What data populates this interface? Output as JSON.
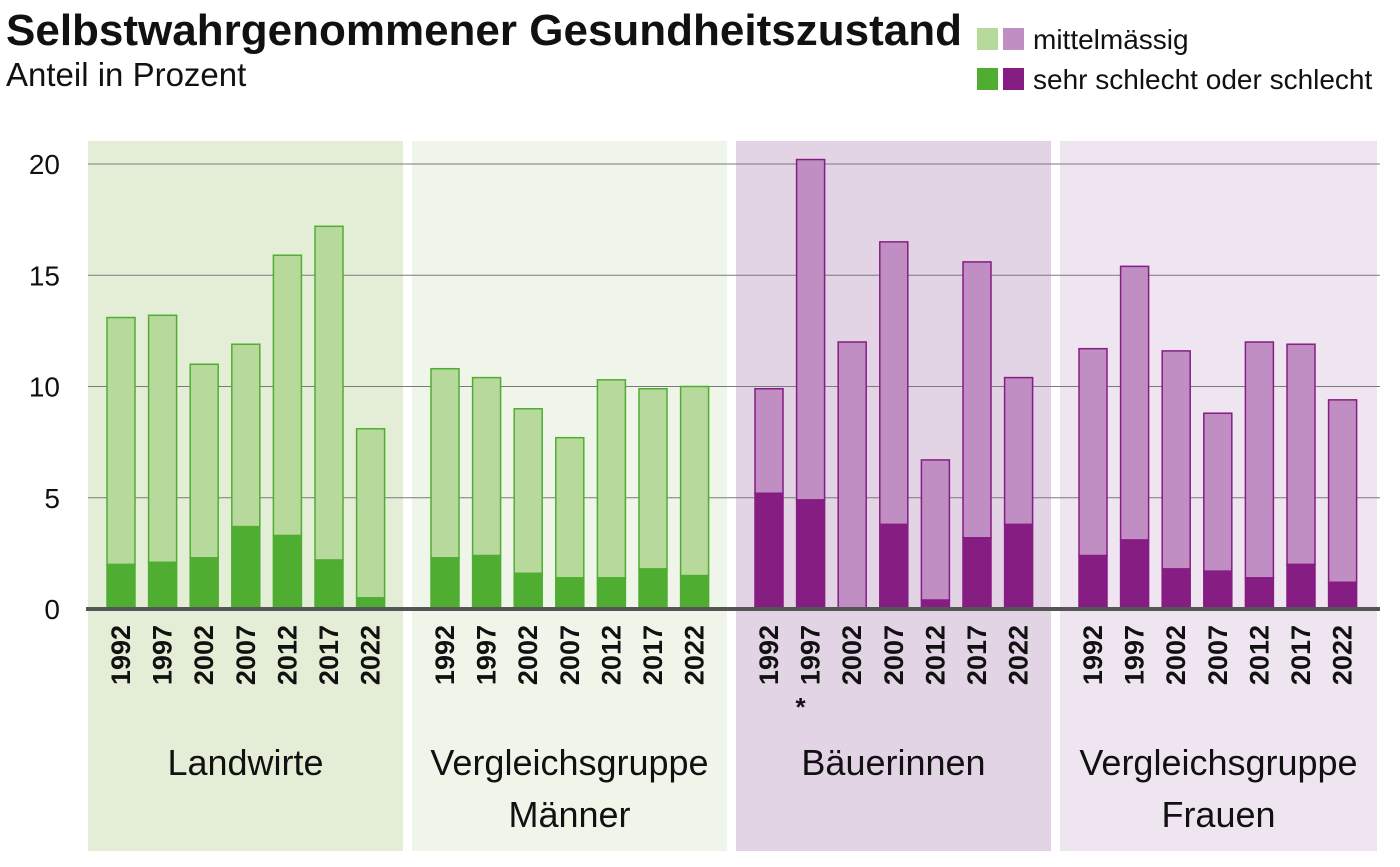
{
  "chart_data": {
    "type": "bar",
    "stacked": true,
    "title": "Selbstwahrgenommener Gesundheitszustand",
    "subtitle": "Anteil in Prozent",
    "ylim": [
      0,
      20
    ],
    "yticks": [
      0,
      5,
      10,
      15,
      20
    ],
    "grid": true,
    "legend": {
      "placement": "top-right",
      "entries": [
        {
          "label": "mittelmässig",
          "colors": [
            "#b8d99c",
            "#c08ec2"
          ]
        },
        {
          "label": "sehr schlecht oder schlecht",
          "colors": [
            "#4fae32",
            "#861d82"
          ]
        }
      ]
    },
    "categories": [
      "1992",
      "1997",
      "2002",
      "2007",
      "2012",
      "2017",
      "2022"
    ],
    "groups": [
      {
        "label": "Landwirte",
        "label_lines": [
          "Landwirte"
        ],
        "palette": "green",
        "background": "#e4eed7",
        "total": [
          13.1,
          13.2,
          11.0,
          11.9,
          15.9,
          17.2,
          8.1
        ],
        "schlecht": [
          2.0,
          2.1,
          2.3,
          3.7,
          3.3,
          2.2,
          0.5
        ]
      },
      {
        "label": "Vergleichsgruppe Männer",
        "label_lines": [
          "Vergleichsgruppe",
          "Männer"
        ],
        "palette": "green",
        "background": "#f0f5ea",
        "total": [
          10.8,
          10.4,
          9.0,
          7.7,
          10.3,
          9.9,
          10.0
        ],
        "schlecht": [
          2.3,
          2.4,
          1.6,
          1.4,
          1.4,
          1.8,
          1.5
        ]
      },
      {
        "label": "Bäuerinnen",
        "label_lines": [
          "Bäuerinnen"
        ],
        "palette": "purple",
        "background": "#e2d3e5",
        "total": [
          9.9,
          20.2,
          12.0,
          16.5,
          6.7,
          15.6,
          10.4
        ],
        "schlecht": [
          5.2,
          4.9,
          0,
          3.8,
          0.4,
          3.2,
          3.8
        ],
        "notes": [
          {
            "category": "1997",
            "text": "*"
          }
        ]
      },
      {
        "label": "Vergleichsgruppe Frauen",
        "label_lines": [
          "Vergleichsgruppe",
          "Frauen"
        ],
        "palette": "purple",
        "background": "#efe5f1",
        "total": [
          11.7,
          15.4,
          11.6,
          8.8,
          12.0,
          11.9,
          9.4
        ],
        "schlecht": [
          2.4,
          3.1,
          1.8,
          1.7,
          1.4,
          2.0,
          1.2
        ]
      }
    ]
  },
  "colors": {
    "green_light": "#b8d99c",
    "green_dark": "#4fae32",
    "green_stroke": "#4fae32",
    "purple_light": "#c08ec2",
    "purple_dark": "#861d82",
    "purple_stroke": "#861d82",
    "gridline": "#7a7a7a",
    "baseline": "#555555"
  }
}
